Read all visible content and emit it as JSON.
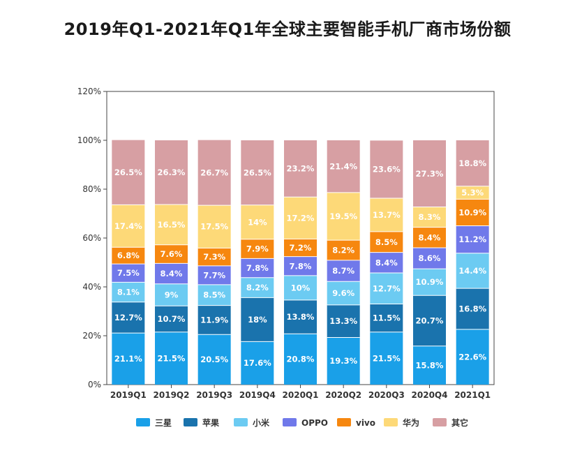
{
  "title": "2019年Q1-2021年Q1年全球主要智能手机厂商市场份额",
  "chart_data": {
    "type": "bar",
    "stacked": true,
    "title": "2019年Q1-2021年Q1年全球主要智能手机厂商市场份额",
    "categories": [
      "2019Q1",
      "2019Q2",
      "2019Q3",
      "2019Q4",
      "2020Q1",
      "2020Q2",
      "2020Q3",
      "2020Q4",
      "2021Q1"
    ],
    "y_ticks": [
      "0%",
      "20%",
      "40%",
      "60%",
      "80%",
      "100%",
      "120%"
    ],
    "ylim": [
      0,
      120
    ],
    "grid": false,
    "legend_position": "bottom",
    "series": [
      {
        "name": "三星",
        "color": "#1aa0e8",
        "values": [
          21.1,
          21.5,
          20.5,
          17.6,
          20.8,
          19.3,
          21.5,
          15.8,
          22.6
        ],
        "labels": [
          "21.1%",
          "21.5%",
          "20.5%",
          "17.6%",
          "20.8%",
          "19.3%",
          "21.5%",
          "15.8%",
          "22.6%"
        ]
      },
      {
        "name": "苹果",
        "color": "#1a73ad",
        "values": [
          12.7,
          10.7,
          11.9,
          18,
          13.8,
          13.3,
          11.5,
          20.7,
          16.8
        ],
        "labels": [
          "12.7%",
          "10.7%",
          "11.9%",
          "18%",
          "13.8%",
          "13.3%",
          "11.5%",
          "20.7%",
          "16.8%"
        ]
      },
      {
        "name": "小米",
        "color": "#6ccbf2",
        "values": [
          8.1,
          9,
          8.5,
          8.2,
          10,
          9.6,
          12.7,
          10.9,
          14.4
        ],
        "labels": [
          "8.1%",
          "9%",
          "8.5%",
          "8.2%",
          "10%",
          "9.6%",
          "12.7%",
          "10.9%",
          "14.4%"
        ]
      },
      {
        "name": "OPPO",
        "color": "#7079ea",
        "values": [
          7.5,
          8.4,
          7.7,
          7.8,
          7.8,
          8.7,
          8.4,
          8.6,
          11.2
        ],
        "labels": [
          "7.5%",
          "8.4%",
          "7.7%",
          "7.8%",
          "7.8%",
          "8.7%",
          "8.4%",
          "8.6%",
          "11.2%"
        ]
      },
      {
        "name": "vivo",
        "color": "#f6870f",
        "values": [
          6.8,
          7.6,
          7.3,
          7.9,
          7.2,
          8.2,
          8.5,
          8.4,
          10.9
        ],
        "labels": [
          "6.8%",
          "7.6%",
          "7.3%",
          "7.9%",
          "7.2%",
          "8.2%",
          "8.5%",
          "8.4%",
          "10.9%"
        ]
      },
      {
        "name": "华为",
        "color": "#fdd978",
        "values": [
          17.4,
          16.5,
          17.5,
          14,
          17.2,
          19.5,
          13.7,
          8.3,
          5.3
        ],
        "labels": [
          "17.4%",
          "16.5%",
          "17.5%",
          "14%",
          "17.2%",
          "19.5%",
          "13.7%",
          "8.3%",
          "5.3%"
        ]
      },
      {
        "name": "其它",
        "color": "#d79fa3",
        "values": [
          26.5,
          26.3,
          26.7,
          26.5,
          23.2,
          21.4,
          23.6,
          27.3,
          18.8
        ],
        "labels": [
          "26.5%",
          "26.3%",
          "26.7%",
          "26.5%",
          "23.2%",
          "21.4%",
          "23.6%",
          "27.3%",
          "18.8%"
        ]
      }
    ]
  }
}
